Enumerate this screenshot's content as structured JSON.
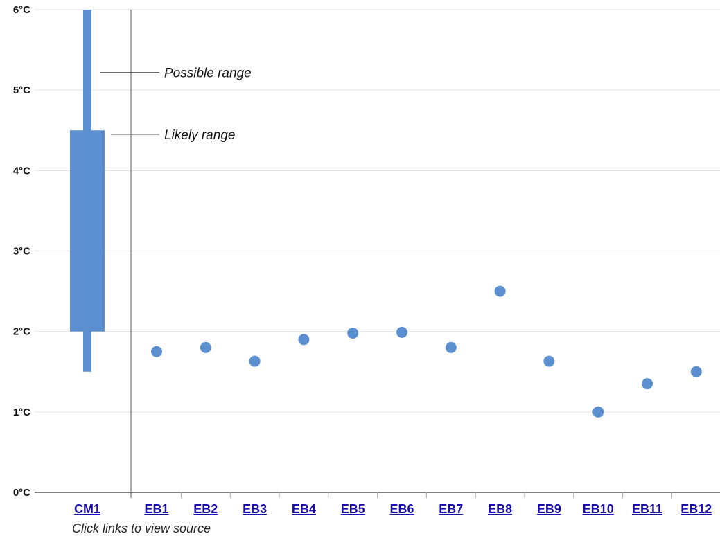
{
  "chart_data": {
    "type": "scatter",
    "title": "",
    "xlabel": "",
    "ylabel": "",
    "ylim": [
      0,
      6
    ],
    "y_ticks": [
      "0°C",
      "1°C",
      "2°C",
      "3°C",
      "4°C",
      "5°C",
      "6°C"
    ],
    "grid": true,
    "range_series": {
      "category": "CM1",
      "possible_range": [
        1.5,
        6
      ],
      "likely_range": [
        2,
        4.5
      ],
      "possible_label": "Possible range",
      "likely_label": "Likely range"
    },
    "categories": [
      "EB1",
      "EB2",
      "EB3",
      "EB4",
      "EB5",
      "EB6",
      "EB7",
      "EB8",
      "EB9",
      "EB10",
      "EB11",
      "EB12"
    ],
    "values": [
      1.75,
      1.8,
      1.63,
      1.9,
      1.98,
      1.99,
      1.8,
      2.5,
      1.63,
      1.0,
      1.35,
      1.5
    ],
    "footnote": "Click links to view source",
    "colors": {
      "marker": "#5b8fcf",
      "link": "#1a0dab",
      "grid": "#e3e3e3",
      "axis": "#333333"
    }
  }
}
